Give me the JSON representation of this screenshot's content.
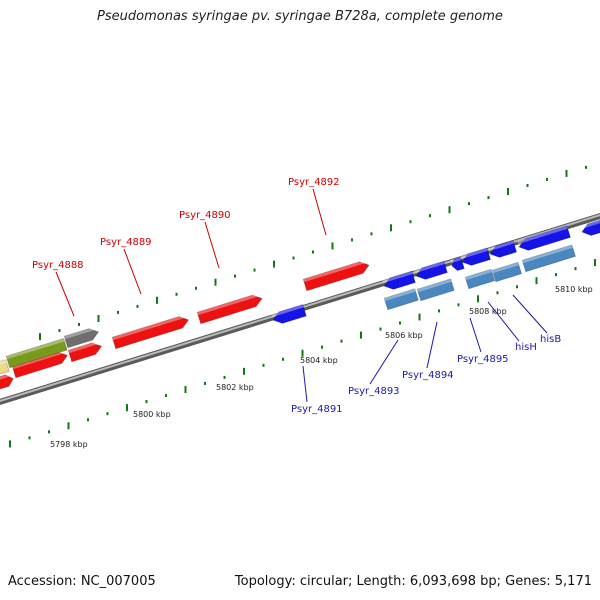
{
  "title": "Pseudomonas syringae pv. syringae B728a, complete genome",
  "footer": {
    "accession": "Accession: NC_007005",
    "summary": "Topology: circular; Length: 6,093,698 bp; Genes: 5,171"
  },
  "colors": {
    "forward": "#ee1111",
    "reverse": "#1414e6",
    "reverse_alt": "#4a86c0",
    "olive": "#7a9a1e",
    "grey_gene": "#6e6e6e",
    "yellow": "#e8dc8a",
    "tick": "#117711",
    "backbone": "#8a8a8a"
  },
  "scale_ticks": [
    {
      "label": "5798 kbp",
      "kbp": 5798
    },
    {
      "label": "5800 kbp",
      "kbp": 5800
    },
    {
      "label": "5802 kbp",
      "kbp": 5802
    },
    {
      "label": "5804 kbp",
      "kbp": 5804
    },
    {
      "label": "5806 kbp",
      "kbp": 5806
    },
    {
      "label": "5808 kbp",
      "kbp": 5808
    },
    {
      "label": "5810 kbp",
      "kbp": 5810
    }
  ],
  "gene_labels": [
    {
      "name": "Psyr_4888",
      "strand": "forward"
    },
    {
      "name": "Psyr_4889",
      "strand": "forward"
    },
    {
      "name": "Psyr_4890",
      "strand": "forward"
    },
    {
      "name": "Psyr_4892",
      "strand": "forward"
    },
    {
      "name": "Psyr_4891",
      "strand": "reverse"
    },
    {
      "name": "Psyr_4893",
      "strand": "reverse"
    },
    {
      "name": "Psyr_4894",
      "strand": "reverse"
    },
    {
      "name": "Psyr_4895",
      "strand": "reverse"
    },
    {
      "name": "hisH",
      "strand": "reverse"
    },
    {
      "name": "hisB",
      "strand": "reverse"
    }
  ]
}
